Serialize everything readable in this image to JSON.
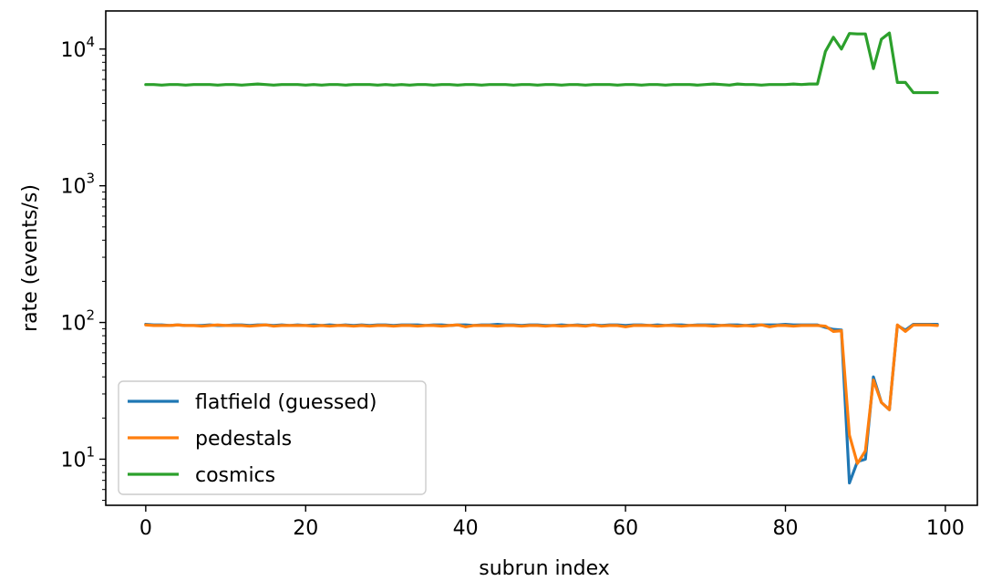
{
  "chart_data": {
    "type": "line",
    "title": "",
    "xlabel": "subrun index",
    "ylabel": "rate (events/s)",
    "xlim": [
      -5,
      104
    ],
    "ylim": [
      4.6,
      19000
    ],
    "yscale": "log",
    "grid": false,
    "legend_position": "lower-left",
    "xticks": [
      0,
      20,
      40,
      60,
      80,
      100
    ],
    "yticks": [
      {
        "value": 10,
        "base": "10",
        "exp": "1"
      },
      {
        "value": 100,
        "base": "10",
        "exp": "2"
      },
      {
        "value": 1000,
        "base": "10",
        "exp": "3"
      },
      {
        "value": 10000,
        "base": "10",
        "exp": "4"
      }
    ],
    "series": [
      {
        "name": "flatfield (guessed)",
        "color": "#1f77b4",
        "x": [
          0,
          1,
          2,
          3,
          4,
          5,
          6,
          7,
          8,
          9,
          10,
          11,
          12,
          13,
          14,
          15,
          16,
          17,
          18,
          19,
          20,
          21,
          22,
          23,
          24,
          25,
          26,
          27,
          28,
          29,
          30,
          31,
          32,
          33,
          34,
          35,
          36,
          37,
          38,
          39,
          40,
          41,
          42,
          43,
          44,
          45,
          46,
          47,
          48,
          49,
          50,
          51,
          52,
          53,
          54,
          55,
          56,
          57,
          58,
          59,
          60,
          61,
          62,
          63,
          64,
          65,
          66,
          67,
          68,
          69,
          70,
          71,
          72,
          73,
          74,
          75,
          76,
          77,
          78,
          79,
          80,
          81,
          82,
          83,
          84,
          85,
          86,
          87,
          88,
          89,
          90,
          91,
          92,
          93,
          94,
          95,
          96,
          97,
          98,
          99
        ],
        "values": [
          97,
          96,
          96,
          95,
          96,
          95,
          95,
          95,
          96,
          95,
          95,
          96,
          96,
          95,
          96,
          96,
          95,
          96,
          95,
          96,
          95,
          96,
          95,
          96,
          95,
          96,
          95,
          96,
          95,
          96,
          96,
          95,
          96,
          96,
          96,
          95,
          96,
          96,
          95,
          96,
          96,
          95,
          96,
          96,
          97,
          96,
          96,
          95,
          96,
          96,
          95,
          95,
          96,
          95,
          96,
          95,
          96,
          95,
          96,
          96,
          95,
          96,
          96,
          95,
          96,
          95,
          96,
          96,
          95,
          96,
          96,
          96,
          95,
          96,
          96,
          95,
          96,
          96,
          96,
          96,
          97,
          96,
          96,
          96,
          96,
          92,
          89,
          88,
          6.7,
          9.6,
          10,
          40,
          26,
          23,
          95,
          88,
          97,
          97,
          97,
          97
        ]
      },
      {
        "name": "pedestals",
        "color": "#ff7f0e",
        "x": [
          0,
          1,
          2,
          3,
          4,
          5,
          6,
          7,
          8,
          9,
          10,
          11,
          12,
          13,
          14,
          15,
          16,
          17,
          18,
          19,
          20,
          21,
          22,
          23,
          24,
          25,
          26,
          27,
          28,
          29,
          30,
          31,
          32,
          33,
          34,
          35,
          36,
          37,
          38,
          39,
          40,
          41,
          42,
          43,
          44,
          45,
          46,
          47,
          48,
          49,
          50,
          51,
          52,
          53,
          54,
          55,
          56,
          57,
          58,
          59,
          60,
          61,
          62,
          63,
          64,
          65,
          66,
          67,
          68,
          69,
          70,
          71,
          72,
          73,
          74,
          75,
          76,
          77,
          78,
          79,
          80,
          81,
          82,
          83,
          84,
          85,
          86,
          87,
          88,
          89,
          90,
          91,
          92,
          93,
          94,
          95,
          96,
          97,
          98,
          99
        ],
        "values": [
          96,
          95,
          95,
          95,
          96,
          95,
          95,
          94,
          95,
          96,
          95,
          95,
          95,
          94,
          95,
          96,
          94,
          95,
          95,
          95,
          95,
          94,
          95,
          94,
          95,
          95,
          94,
          95,
          94,
          95,
          95,
          94,
          95,
          95,
          94,
          95,
          95,
          94,
          95,
          96,
          93,
          95,
          95,
          95,
          94,
          95,
          95,
          94,
          95,
          95,
          94,
          95,
          94,
          95,
          95,
          94,
          96,
          94,
          95,
          95,
          93,
          95,
          95,
          95,
          94,
          95,
          95,
          94,
          95,
          95,
          95,
          94,
          95,
          95,
          94,
          95,
          94,
          96,
          93,
          95,
          95,
          94,
          95,
          95,
          95,
          94,
          86,
          87,
          15,
          9.3,
          11.5,
          38,
          26,
          23,
          96,
          86,
          96,
          96,
          96,
          95
        ]
      },
      {
        "name": "cosmics",
        "color": "#2ca02c",
        "x": [
          0,
          1,
          2,
          3,
          4,
          5,
          6,
          7,
          8,
          9,
          10,
          11,
          12,
          13,
          14,
          15,
          16,
          17,
          18,
          19,
          20,
          21,
          22,
          23,
          24,
          25,
          26,
          27,
          28,
          29,
          30,
          31,
          32,
          33,
          34,
          35,
          36,
          37,
          38,
          39,
          40,
          41,
          42,
          43,
          44,
          45,
          46,
          47,
          48,
          49,
          50,
          51,
          52,
          53,
          54,
          55,
          56,
          57,
          58,
          59,
          60,
          61,
          62,
          63,
          64,
          65,
          66,
          67,
          68,
          69,
          70,
          71,
          72,
          73,
          74,
          75,
          76,
          77,
          78,
          79,
          80,
          81,
          82,
          83,
          84,
          85,
          86,
          87,
          88,
          89,
          90,
          91,
          92,
          93,
          94,
          95,
          96,
          97,
          98,
          99
        ],
        "values": [
          5500,
          5500,
          5450,
          5500,
          5500,
          5450,
          5500,
          5500,
          5500,
          5450,
          5500,
          5500,
          5450,
          5500,
          5550,
          5500,
          5450,
          5500,
          5500,
          5500,
          5450,
          5500,
          5450,
          5500,
          5500,
          5450,
          5500,
          5500,
          5500,
          5450,
          5500,
          5450,
          5500,
          5450,
          5500,
          5500,
          5450,
          5500,
          5500,
          5450,
          5500,
          5500,
          5450,
          5500,
          5500,
          5500,
          5450,
          5500,
          5500,
          5450,
          5500,
          5500,
          5450,
          5500,
          5500,
          5450,
          5500,
          5500,
          5500,
          5450,
          5500,
          5500,
          5450,
          5500,
          5500,
          5450,
          5500,
          5500,
          5500,
          5450,
          5500,
          5550,
          5500,
          5450,
          5550,
          5500,
          5500,
          5450,
          5500,
          5500,
          5500,
          5550,
          5500,
          5550,
          5550,
          9600,
          12200,
          10000,
          13000,
          12900,
          12900,
          7200,
          11800,
          13100,
          5700,
          5700,
          4800,
          4800,
          4800,
          4800
        ]
      }
    ]
  }
}
